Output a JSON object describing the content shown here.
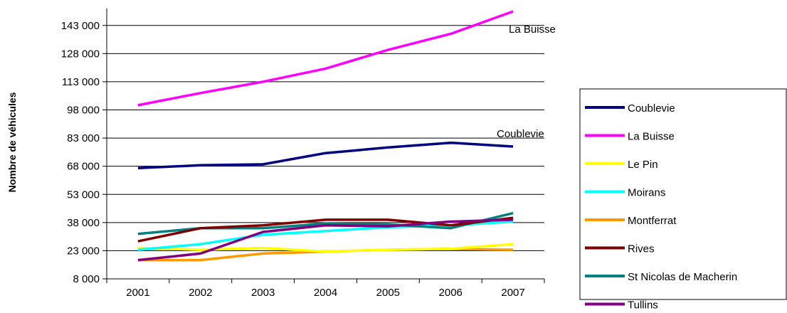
{
  "chart_data": {
    "type": "line",
    "title": "",
    "xlabel": "",
    "ylabel": "Nombre de véhicules",
    "x": [
      "2001",
      "2002",
      "2003",
      "2004",
      "2005",
      "2006",
      "2007"
    ],
    "ylim": [
      8000,
      152000
    ],
    "yticks": [
      "8 000",
      "23 000",
      "38 000",
      "53 000",
      "68 000",
      "83 000",
      "98 000",
      "113 000",
      "128 000",
      "143 000"
    ],
    "grid": true,
    "legend_position": "right",
    "series": [
      {
        "name": "Coublevie",
        "color": "#000080",
        "values": [
          67000,
          68500,
          69000,
          75000,
          78000,
          80500,
          78500
        ]
      },
      {
        "name": "La Buisse",
        "color": "#FF00FF",
        "values": [
          100500,
          107000,
          113000,
          120000,
          130000,
          138500,
          150500
        ]
      },
      {
        "name": "Le Pin",
        "color": "#FFFF00",
        "values": [
          24500,
          23500,
          24500,
          22500,
          23500,
          24000,
          26500
        ]
      },
      {
        "name": "Moirans",
        "color": "#00FFFF",
        "values": [
          23500,
          26500,
          31500,
          33500,
          35500,
          36500,
          38500
        ]
      },
      {
        "name": "Montferrat",
        "color": "#FF9900",
        "values": [
          18000,
          18000,
          21500,
          22500,
          23500,
          24000,
          23500
        ]
      },
      {
        "name": "Rives",
        "color": "#800000",
        "values": [
          28000,
          35000,
          36500,
          39500,
          39500,
          36500,
          40500
        ]
      },
      {
        "name": "St Nicolas de Macherin",
        "color": "#008080",
        "values": [
          32000,
          35000,
          35000,
          37500,
          37000,
          35000,
          43000
        ]
      },
      {
        "name": "Tullins",
        "color": "#800080",
        "values": [
          18000,
          21500,
          33000,
          36500,
          36000,
          38500,
          39500
        ]
      }
    ],
    "annotations": [
      {
        "text": "La Buisse"
      },
      {
        "text": "Coublevie"
      }
    ]
  }
}
